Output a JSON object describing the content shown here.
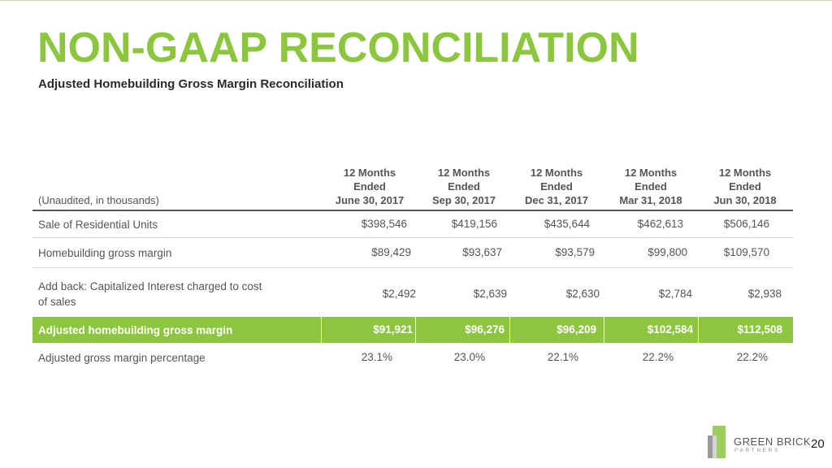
{
  "slide": {
    "title": "NON-GAAP RECONCILIATION",
    "subtitle": "Adjusted Homebuilding Gross Margin Reconciliation",
    "page_number": "20",
    "brand": {
      "name": "GREEN BRICK",
      "tagline": "PARTNERS"
    },
    "accent_color": "#8cc63f"
  },
  "table": {
    "header_label": "(Unaudited, in thousands)",
    "columns": [
      {
        "line1": "12 Months",
        "line2": "Ended",
        "line3": "June 30, 2017"
      },
      {
        "line1": "12 Months",
        "line2": "Ended",
        "line3": "Sep 30, 2017"
      },
      {
        "line1": "12 Months",
        "line2": "Ended",
        "line3": "Dec 31, 2017"
      },
      {
        "line1": "12 Months",
        "line2": "Ended",
        "line3": "Mar 31, 2018"
      },
      {
        "line1": "12 Months",
        "line2": "Ended",
        "line3": "Jun 30, 2018"
      }
    ],
    "rows": [
      {
        "label": "Sale of Residential Units",
        "values": [
          "$398,546",
          "$419,156",
          "$435,644",
          "$462,613",
          "$506,146"
        ]
      },
      {
        "label": "Homebuilding gross margin",
        "values": [
          "$89,429",
          "$93,637",
          "$93,579",
          "$99,800",
          "$109,570"
        ]
      },
      {
        "label_line1": "Add back: Capitalized Interest charged to cost",
        "label_line2": "of sales",
        "values": [
          "$2,492",
          "$2,639",
          "$2,630",
          "$2,784",
          "$2,938"
        ]
      },
      {
        "label": "Adjusted homebuilding gross margin",
        "values": [
          "$91,921",
          "$96,276",
          "$96,209",
          "$102,584",
          "$112,508"
        ]
      },
      {
        "label": "Adjusted gross margin percentage",
        "values": [
          "23.1%",
          "23.0%",
          "22.1%",
          "22.2%",
          "22.2%"
        ]
      }
    ]
  }
}
